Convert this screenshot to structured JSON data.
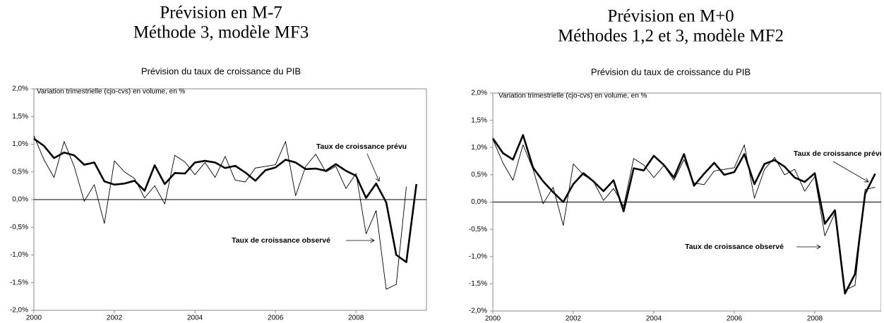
{
  "chart_data": [
    {
      "type": "line",
      "title": "Prévision en M-7",
      "subtitle": "Méthode 3, modèle MF3",
      "plot_title": "Prévision du taux de croissance du PIB",
      "y_label": "Variation trimestrielle (cjo-cvs) en volume, en %",
      "annotations": [
        "Taux de croissance prévu",
        "Taux de croissance observé"
      ],
      "x": [
        2000,
        2000.25,
        2000.5,
        2000.75,
        2001,
        2001.25,
        2001.5,
        2001.75,
        2002,
        2002.25,
        2002.5,
        2002.75,
        2003,
        2003.25,
        2003.5,
        2003.75,
        2004,
        2004.25,
        2004.5,
        2004.75,
        2005,
        2005.25,
        2005.5,
        2005.75,
        2006,
        2006.25,
        2006.5,
        2006.75,
        2007,
        2007.25,
        2007.5,
        2007.75,
        2008,
        2008.25,
        2008.5,
        2008.75,
        2009,
        2009.25,
        2009.5
      ],
      "series": [
        {
          "color": "#000000",
          "line_width": 2.6,
          "values": [
            1.1,
            0.97,
            0.75,
            0.85,
            0.8,
            0.63,
            0.67,
            0.33,
            0.27,
            0.29,
            0.34,
            0.16,
            0.62,
            0.28,
            0.48,
            0.47,
            0.67,
            0.7,
            0.67,
            0.57,
            0.61,
            0.49,
            0.34,
            0.53,
            0.58,
            0.72,
            0.67,
            0.55,
            0.56,
            0.52,
            0.64,
            0.52,
            0.43,
            0.03,
            0.29,
            -0.05,
            -1.0,
            -1.13,
            0.28
          ]
        },
        {
          "color": "#000000",
          "line_width": 0.9,
          "values": [
            1.15,
            0.72,
            0.4,
            1.05,
            0.6,
            -0.03,
            0.27,
            -0.43,
            0.7,
            0.5,
            0.38,
            0.03,
            0.25,
            -0.08,
            0.8,
            0.68,
            0.45,
            0.67,
            0.4,
            0.78,
            0.35,
            0.32,
            0.57,
            0.6,
            0.63,
            1.05,
            0.07,
            0.6,
            0.82,
            0.5,
            0.6,
            0.2,
            0.47,
            -0.62,
            -0.2,
            -1.62,
            -1.53,
            0.23,
            null
          ]
        }
      ],
      "xlim": [
        2000,
        2009.75
      ],
      "xticks": [
        2000,
        2002,
        2004,
        2006,
        2008
      ],
      "ylim": [
        -2,
        2
      ],
      "yticks": [
        {
          "value": -2,
          "label": "-2,0%"
        },
        {
          "value": -1.5,
          "label": "-1,5%"
        },
        {
          "value": -1,
          "label": "-1,0%"
        },
        {
          "value": -0.5,
          "label": "-0,5%"
        },
        {
          "value": 0,
          "label": "0,0%"
        },
        {
          "value": 0.5,
          "label": "0,5%"
        },
        {
          "value": 1,
          "label": "1,0%"
        },
        {
          "value": 1.5,
          "label": "1,5%"
        },
        {
          "value": 2,
          "label": "2,0%"
        }
      ]
    },
    {
      "type": "line",
      "title": "Prévision en M+0",
      "subtitle": "Méthodes 1,2 et 3, modèle MF2",
      "plot_title": "Prévision du taux de croissance du PIB",
      "y_label": "Variation trimestrielle (cjo-cvs) en volume, en %",
      "annotations": [
        "Taux de croissance prévu",
        "Taux de croissance observé"
      ],
      "x": [
        2000,
        2000.25,
        2000.5,
        2000.75,
        2001,
        2001.25,
        2001.5,
        2001.75,
        2002,
        2002.25,
        2002.5,
        2002.75,
        2003,
        2003.25,
        2003.5,
        2003.75,
        2004,
        2004.25,
        2004.5,
        2004.75,
        2005,
        2005.25,
        2005.5,
        2005.75,
        2006,
        2006.25,
        2006.5,
        2006.75,
        2007,
        2007.25,
        2007.5,
        2007.75,
        2008,
        2008.25,
        2008.5,
        2008.75,
        2009,
        2009.25,
        2009.5
      ],
      "series": [
        {
          "color": "#000000",
          "line_width": 2.6,
          "values": [
            1.17,
            0.9,
            0.78,
            1.23,
            0.63,
            0.38,
            0.18,
            0.0,
            0.33,
            0.53,
            0.38,
            0.2,
            0.4,
            -0.17,
            0.62,
            0.58,
            0.85,
            0.68,
            0.45,
            0.88,
            0.3,
            0.52,
            0.72,
            0.5,
            0.55,
            0.88,
            0.33,
            0.7,
            0.77,
            0.65,
            0.45,
            0.37,
            0.53,
            -0.4,
            -0.15,
            -1.68,
            -1.32,
            0.15,
            0.52
          ]
        },
        {
          "color": "#000000",
          "line_width": 0.9,
          "values": [
            1.15,
            0.72,
            0.4,
            1.05,
            0.6,
            -0.03,
            0.27,
            -0.43,
            0.7,
            0.5,
            0.38,
            0.03,
            0.25,
            -0.08,
            0.8,
            0.68,
            0.45,
            0.67,
            0.4,
            0.78,
            0.35,
            0.32,
            0.57,
            0.6,
            0.63,
            1.05,
            0.07,
            0.6,
            0.82,
            0.5,
            0.6,
            0.2,
            0.47,
            -0.62,
            -0.2,
            -1.62,
            -1.53,
            0.23,
            0.27
          ]
        }
      ],
      "xlim": [
        2000,
        2009.65
      ],
      "xticks": [
        2000,
        2002,
        2004,
        2006,
        2008
      ],
      "ylim": [
        -2,
        2
      ],
      "yticks": [
        {
          "value": -2,
          "label": "-2,0%"
        },
        {
          "value": -1.5,
          "label": "-1,5%"
        },
        {
          "value": -1,
          "label": "-1,0%"
        },
        {
          "value": -0.5,
          "label": "-0,5%"
        },
        {
          "value": 0,
          "label": "0,0%"
        },
        {
          "value": 0.5,
          "label": "0,5%"
        },
        {
          "value": 1,
          "label": "1,0%"
        },
        {
          "value": 1.5,
          "label": "1,5%"
        },
        {
          "value": 2,
          "label": "2,0%"
        }
      ]
    }
  ]
}
